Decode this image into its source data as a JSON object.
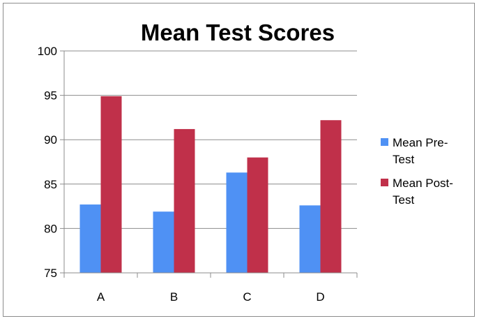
{
  "chart_data": {
    "type": "bar",
    "title": "Mean Test Scores",
    "xlabel": "",
    "ylabel": "",
    "categories": [
      "A",
      "B",
      "C",
      "D"
    ],
    "ylim": [
      75,
      100
    ],
    "yticks": [
      75,
      80,
      85,
      90,
      95,
      100
    ],
    "grid": true,
    "legend_position": "right",
    "series": [
      {
        "name": "Mean Pre-Test",
        "name_lines": [
          "Mean Pre-",
          "Test"
        ],
        "color": "#4f91f4",
        "values": [
          82.7,
          81.9,
          86.3,
          82.6
        ]
      },
      {
        "name": "Mean Post-Test",
        "name_lines": [
          "Mean Post-",
          "Test"
        ],
        "color": "#c0304a",
        "values": [
          94.9,
          91.2,
          88.0,
          92.2
        ]
      }
    ]
  }
}
